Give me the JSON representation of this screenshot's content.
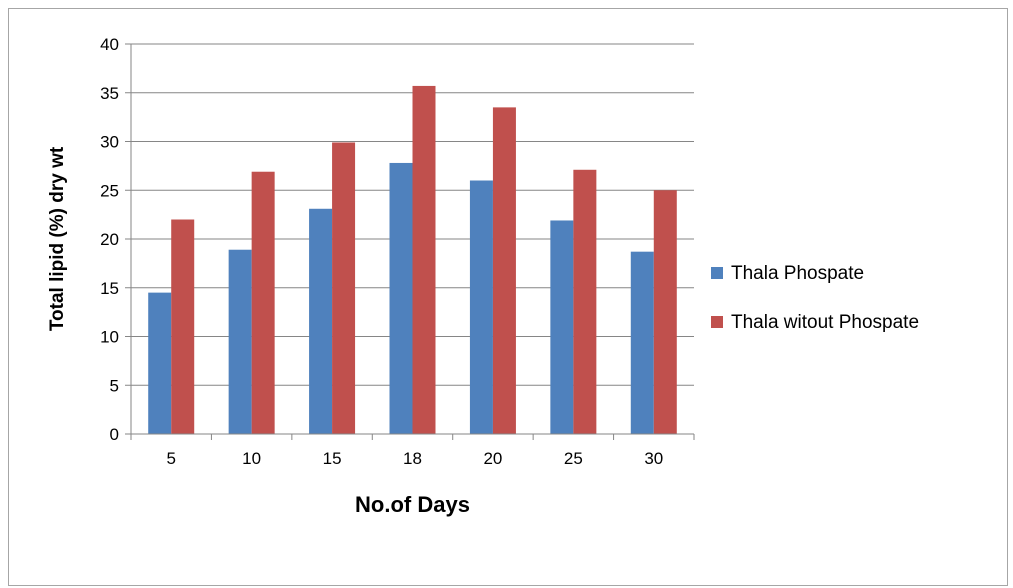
{
  "chart_data": {
    "type": "bar",
    "title": "",
    "xlabel": "No.of Days",
    "ylabel": "Total lipid (%) dry wt",
    "categories": [
      "5",
      "10",
      "15",
      "18",
      "20",
      "25",
      "30"
    ],
    "series": [
      {
        "name": "Thala Phospate",
        "color": "#4f81bd",
        "values": [
          14.5,
          18.9,
          23.1,
          27.8,
          26.0,
          21.9,
          18.7
        ]
      },
      {
        "name": "Thala witout Phospate",
        "color": "#c0504d",
        "values": [
          22.0,
          26.9,
          29.9,
          35.7,
          33.5,
          27.1,
          25.0
        ]
      }
    ],
    "ylim": [
      0,
      40
    ],
    "yticks": [
      0,
      5,
      10,
      15,
      20,
      25,
      30,
      35,
      40
    ],
    "grid": true,
    "legend_position": "right"
  }
}
